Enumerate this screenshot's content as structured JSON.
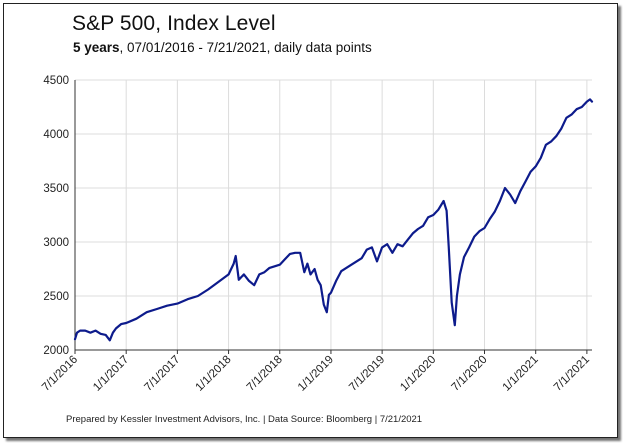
{
  "title": "S&P 500, Index Level",
  "subtitle_bold": "5 years",
  "subtitle_rest": ", 07/01/2016 - 7/21/2021, daily data points",
  "footer": "Prepared by Kessler Investment Advisors, Inc. | Data Source: Bloomberg | 7/21/2021",
  "colors": {
    "line": "#0d1b8c",
    "grid": "#dcdcdc",
    "axis": "#333333"
  },
  "chart_data": {
    "type": "line",
    "title": "S&P 500, Index Level",
    "xlabel": "",
    "ylabel": "",
    "ylim": [
      2000,
      4500
    ],
    "yticks": [
      2000,
      2500,
      3000,
      3500,
      4000,
      4500
    ],
    "ytick_labels": [
      "2000",
      "2500",
      "3000",
      "3500",
      "4000",
      "4500"
    ],
    "xtick_labels": [
      "7/1/2016",
      "1/1/2017",
      "7/1/2017",
      "1/1/2018",
      "7/1/2018",
      "1/1/2019",
      "7/1/2019",
      "1/1/2020",
      "7/1/2020",
      "1/1/2021",
      "7/1/2021"
    ],
    "xtick_dates": [
      2016.5,
      2017.0,
      2017.5,
      2018.0,
      2018.5,
      2019.0,
      2019.5,
      2020.0,
      2020.5,
      2021.0,
      2021.5
    ],
    "xlim": [
      2016.5,
      2021.55
    ],
    "grid": true,
    "series": [
      {
        "name": "S&P 500",
        "x": [
          2016.5,
          2016.52,
          2016.55,
          2016.6,
          2016.65,
          2016.7,
          2016.75,
          2016.8,
          2016.84,
          2016.87,
          2016.9,
          2016.95,
          2017.0,
          2017.1,
          2017.2,
          2017.3,
          2017.4,
          2017.5,
          2017.6,
          2017.7,
          2017.8,
          2017.9,
          2018.0,
          2018.05,
          2018.07,
          2018.1,
          2018.15,
          2018.2,
          2018.25,
          2018.3,
          2018.35,
          2018.4,
          2018.5,
          2018.55,
          2018.6,
          2018.65,
          2018.7,
          2018.74,
          2018.77,
          2018.8,
          2018.84,
          2018.87,
          2018.9,
          2018.93,
          2018.96,
          2018.98,
          2019.0,
          2019.05,
          2019.1,
          2019.2,
          2019.3,
          2019.35,
          2019.4,
          2019.45,
          2019.5,
          2019.55,
          2019.6,
          2019.65,
          2019.7,
          2019.75,
          2019.8,
          2019.85,
          2019.9,
          2019.95,
          2020.0,
          2020.05,
          2020.1,
          2020.13,
          2020.15,
          2020.18,
          2020.21,
          2020.23,
          2020.26,
          2020.3,
          2020.35,
          2020.4,
          2020.45,
          2020.5,
          2020.55,
          2020.6,
          2020.65,
          2020.7,
          2020.75,
          2020.8,
          2020.85,
          2020.9,
          2020.95,
          2021.0,
          2021.05,
          2021.1,
          2021.15,
          2021.2,
          2021.25,
          2021.3,
          2021.35,
          2021.4,
          2021.45,
          2021.5,
          2021.53,
          2021.55
        ],
        "y": [
          2100,
          2160,
          2180,
          2180,
          2160,
          2180,
          2150,
          2140,
          2090,
          2160,
          2200,
          2240,
          2250,
          2290,
          2350,
          2380,
          2410,
          2430,
          2470,
          2500,
          2560,
          2630,
          2700,
          2800,
          2870,
          2650,
          2700,
          2640,
          2600,
          2700,
          2720,
          2760,
          2790,
          2840,
          2890,
          2900,
          2900,
          2720,
          2800,
          2700,
          2750,
          2650,
          2600,
          2420,
          2350,
          2510,
          2530,
          2640,
          2730,
          2790,
          2850,
          2930,
          2950,
          2820,
          2950,
          2980,
          2900,
          2980,
          2960,
          3020,
          3080,
          3120,
          3150,
          3230,
          3250,
          3300,
          3380,
          3290,
          2960,
          2440,
          2230,
          2500,
          2700,
          2860,
          2950,
          3050,
          3100,
          3130,
          3210,
          3280,
          3380,
          3500,
          3440,
          3360,
          3470,
          3560,
          3650,
          3700,
          3780,
          3900,
          3930,
          3980,
          4050,
          4150,
          4180,
          4230,
          4250,
          4300,
          4320,
          4300
        ]
      }
    ]
  }
}
